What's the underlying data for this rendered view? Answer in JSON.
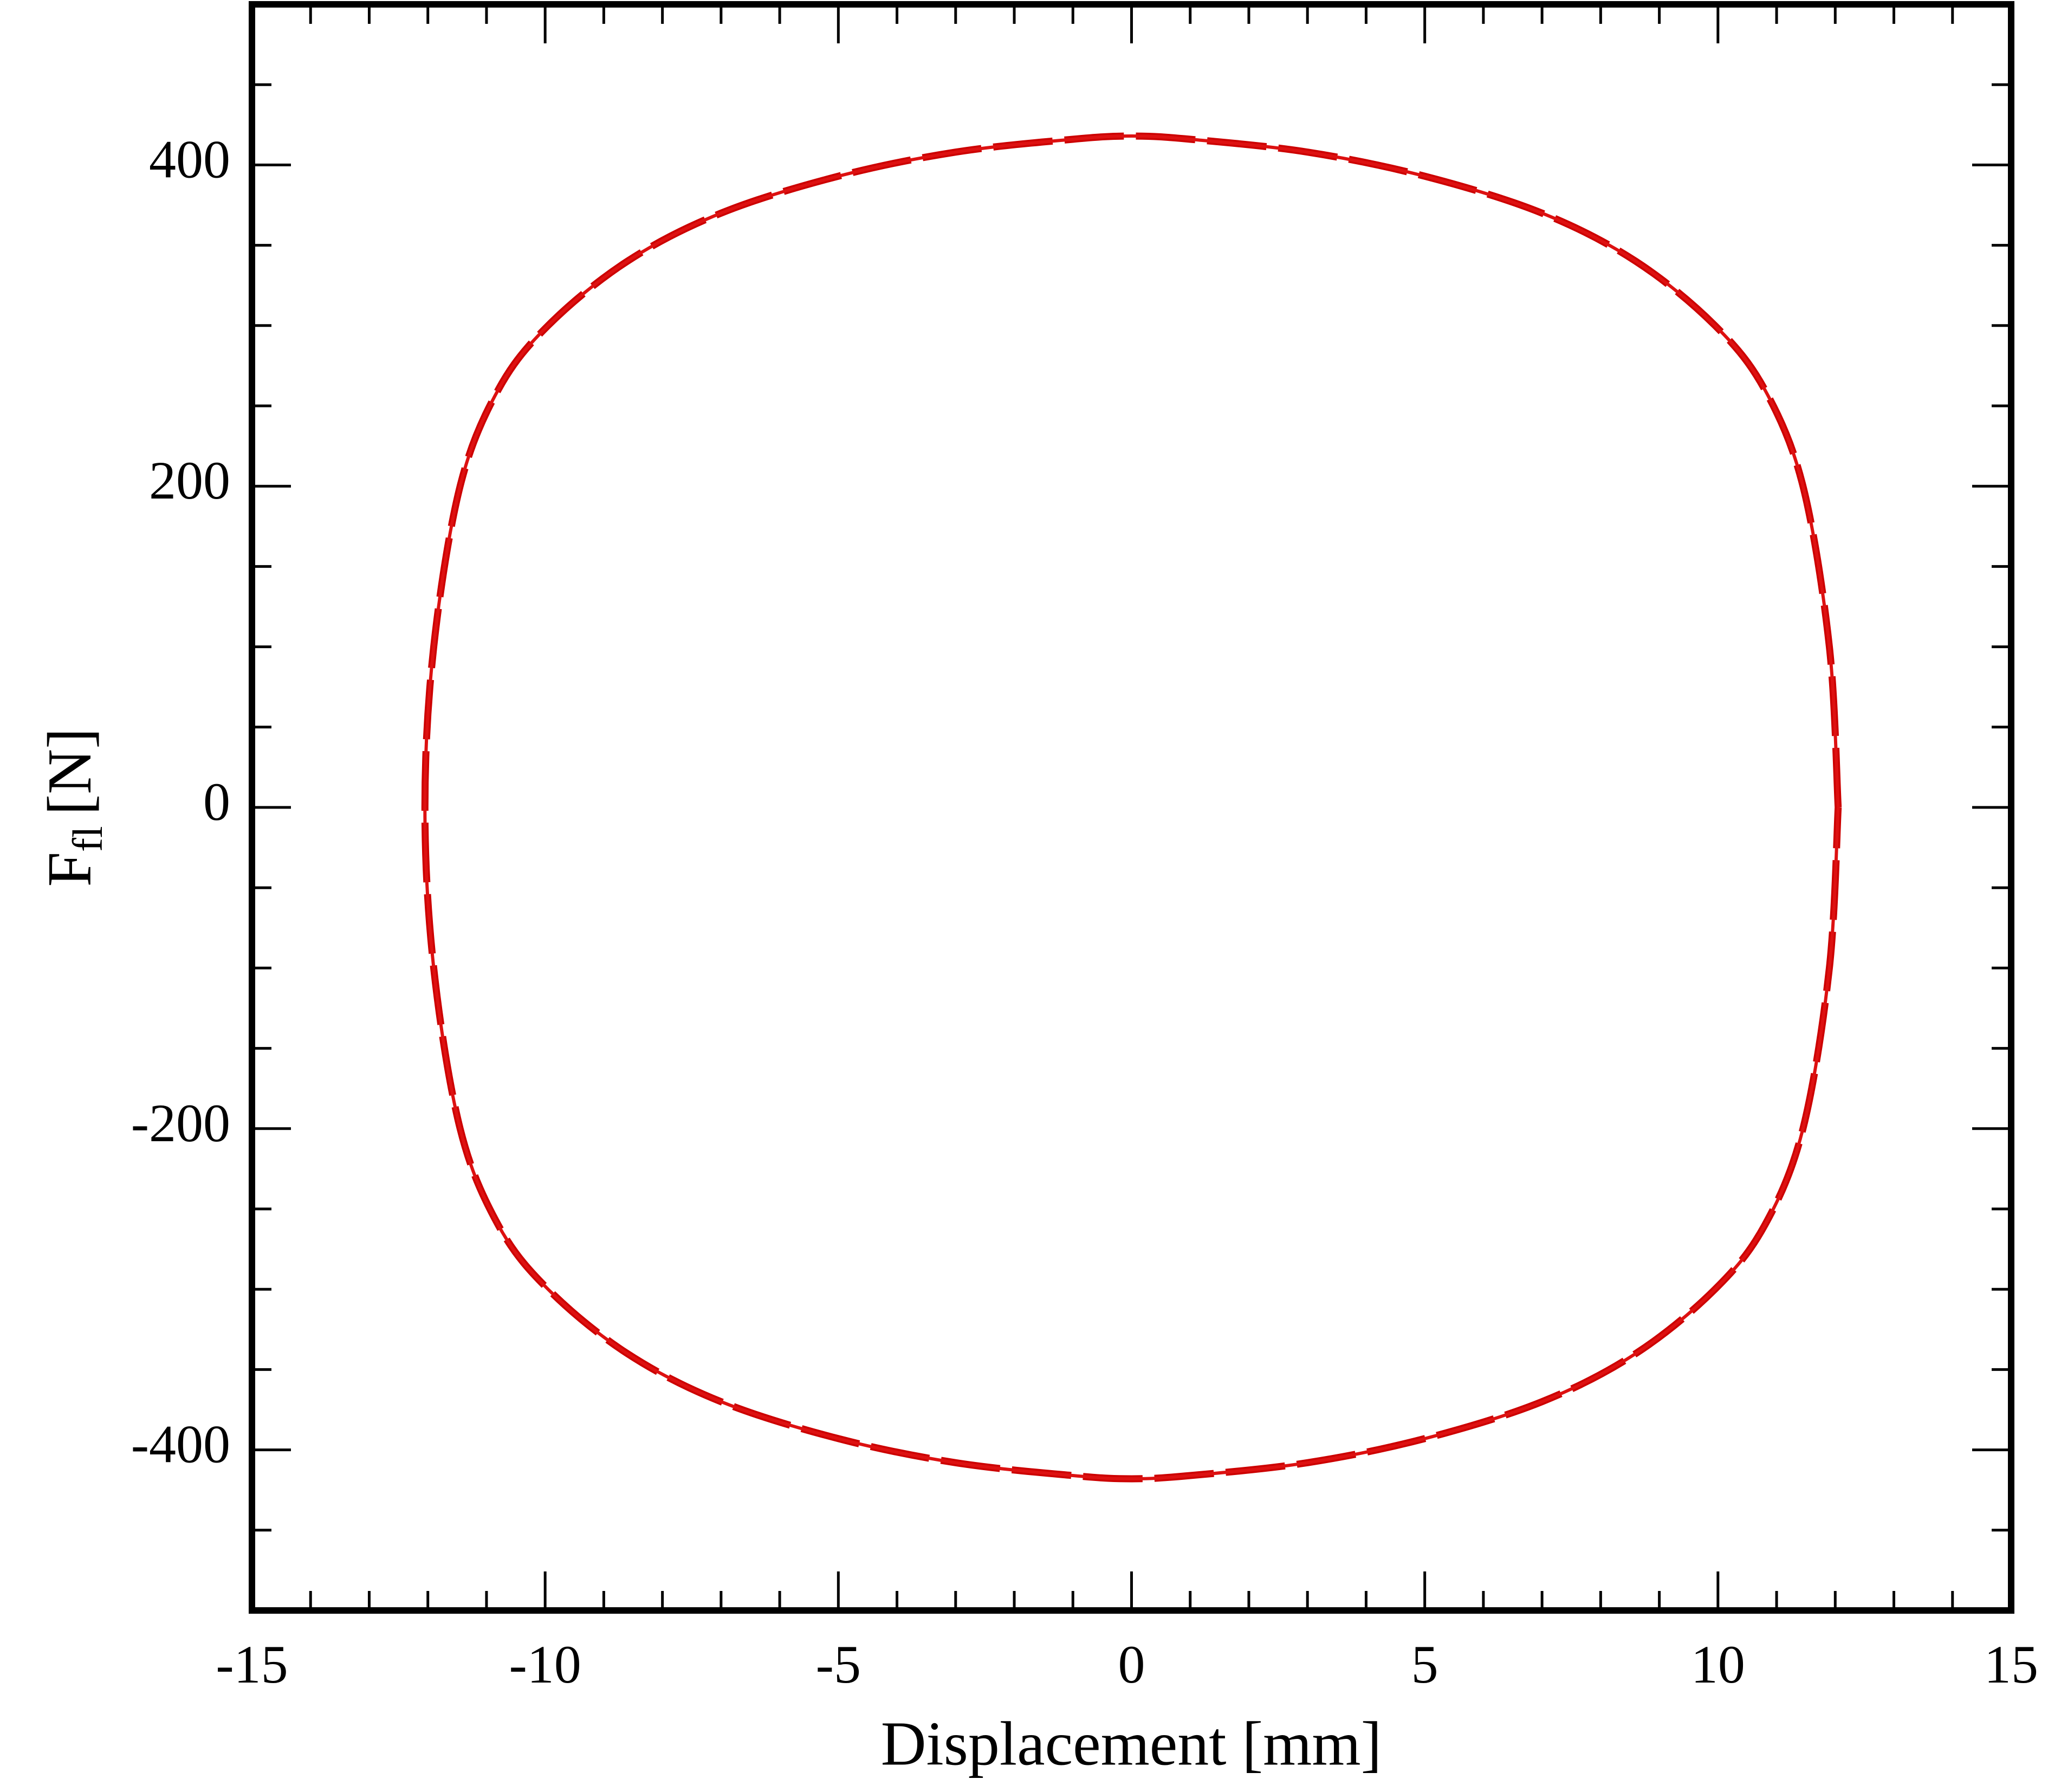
{
  "chart_data": {
    "type": "line",
    "xlabel": "Displacement [mm]",
    "ylabel": {
      "main": "F",
      "sub": "fl",
      "unit": "[N]"
    },
    "xlim": [
      -15,
      15
    ],
    "ylim": [
      -500,
      500
    ],
    "xticks": [
      -15,
      -10,
      -5,
      0,
      5,
      10,
      15
    ],
    "yticks": [
      -400,
      -200,
      0,
      200,
      400
    ],
    "xminor_ticks": [
      -14,
      -13,
      -12,
      -11,
      -9,
      -8,
      -7,
      -6,
      -4,
      -3,
      -2,
      -1,
      1,
      2,
      3,
      4,
      6,
      7,
      8,
      9,
      11,
      12,
      13,
      14
    ],
    "yminor_ticks": [
      -450,
      -350,
      -300,
      -250,
      -150,
      -100,
      -50,
      50,
      100,
      150,
      250,
      300,
      350,
      450
    ],
    "series": [
      {
        "color": "#cc0000",
        "style": "dashed",
        "x": [
          12.05,
          11.9,
          11.45,
          10.8,
          9.95,
          8.6,
          7.0,
          5.0,
          3.0,
          1.0,
          0,
          -1.0,
          -3.0,
          -5.0,
          -7.0,
          -8.6,
          -9.95,
          -10.8,
          -11.45,
          -11.9,
          -12.05,
          -11.9,
          -11.45,
          -10.8,
          -9.95,
          -8.6,
          -7.0,
          -5.0,
          -3.0,
          -1.0,
          0,
          1.0,
          3.0,
          5.0,
          7.0,
          8.6,
          9.95,
          10.8,
          11.45,
          11.9,
          12.05
        ],
        "y": [
          0,
          100,
          200,
          260,
          300,
          340,
          370,
          393,
          408,
          416,
          418,
          416,
          408,
          393,
          370,
          340,
          300,
          260,
          200,
          100,
          0,
          -100,
          -200,
          -260,
          -300,
          -340,
          -370,
          -393,
          -408,
          -416,
          -418,
          -416,
          -408,
          -393,
          -370,
          -340,
          -300,
          -260,
          -200,
          -100,
          0
        ]
      },
      {
        "color": "#dd1111",
        "style": "solid",
        "x": [
          12.05,
          11.9,
          11.45,
          10.8,
          9.95,
          8.6,
          7.0,
          5.0,
          3.0,
          1.0,
          0,
          -1.0,
          -3.0,
          -5.0,
          -7.0,
          -8.6,
          -9.95,
          -10.8,
          -11.45,
          -11.9,
          -12.05,
          -11.9,
          -11.45,
          -10.8,
          -9.95,
          -8.6,
          -7.0,
          -5.0,
          -3.0,
          -1.0,
          0,
          1.0,
          3.0,
          5.0,
          7.0,
          8.6,
          9.95,
          10.8,
          11.45,
          11.9,
          12.05
        ],
        "y": [
          0,
          100,
          200,
          260,
          300,
          340,
          370,
          393,
          408,
          416,
          418,
          416,
          408,
          393,
          370,
          340,
          300,
          260,
          200,
          100,
          0,
          -100,
          -200,
          -260,
          -300,
          -340,
          -370,
          -393,
          -408,
          -416,
          -418,
          -416,
          -408,
          -393,
          -370,
          -340,
          -300,
          -260,
          -200,
          -100,
          0
        ]
      }
    ]
  }
}
